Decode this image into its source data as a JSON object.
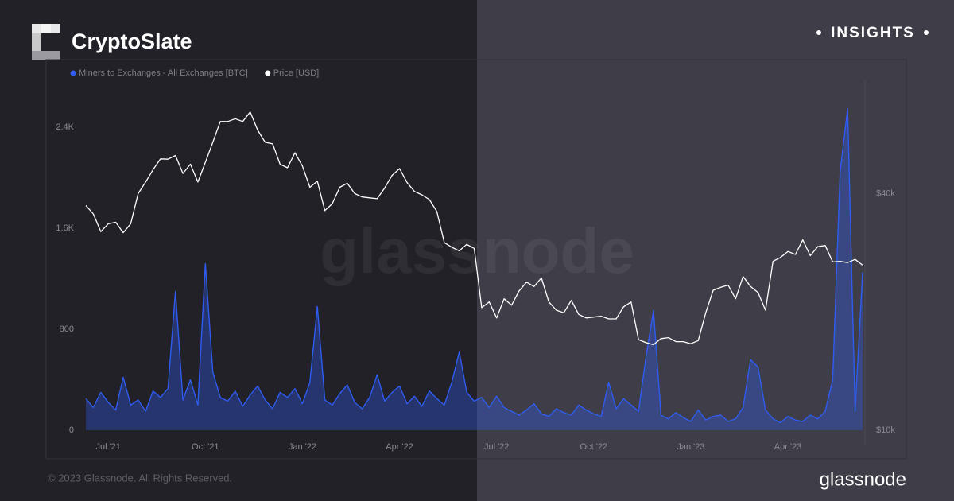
{
  "brand": "CryptoSlate",
  "badge": "INSIGHTS",
  "chart_data": {
    "type": "line",
    "watermark": "glassnode",
    "categories": [
      null,
      null,
      null,
      "Jul '21",
      null,
      null,
      null,
      null,
      null,
      null,
      null,
      null,
      null,
      null,
      null,
      null,
      "Oct '21",
      null,
      null,
      null,
      null,
      null,
      null,
      null,
      null,
      null,
      null,
      null,
      null,
      "Jan '22",
      null,
      null,
      null,
      null,
      null,
      null,
      null,
      null,
      null,
      null,
      null,
      null,
      "Apr '22",
      null,
      null,
      null,
      null,
      null,
      null,
      null,
      null,
      null,
      null,
      null,
      null,
      "Jul '22",
      null,
      null,
      null,
      null,
      null,
      null,
      null,
      null,
      null,
      null,
      null,
      null,
      "Oct '22",
      null,
      null,
      null,
      null,
      null,
      null,
      null,
      null,
      null,
      null,
      null,
      null,
      "Jan '23",
      null,
      null,
      null,
      null,
      null,
      null,
      null,
      null,
      null,
      null,
      null,
      null,
      "Apr '23",
      null,
      null,
      null,
      null,
      null,
      null,
      null,
      null,
      null,
      null
    ],
    "series": [
      {
        "name": "Miners to Exchanges - All Exchanges [BTC]",
        "color": "#2f5cf0",
        "fill": true,
        "values": [
          250,
          180,
          300,
          220,
          160,
          420,
          200,
          240,
          150,
          310,
          260,
          330,
          1100,
          240,
          400,
          200,
          1320,
          460,
          260,
          230,
          310,
          190,
          280,
          350,
          240,
          170,
          300,
          260,
          330,
          210,
          380,
          980,
          240,
          200,
          290,
          360,
          220,
          170,
          260,
          440,
          230,
          300,
          350,
          210,
          270,
          190,
          310,
          250,
          200,
          380,
          620,
          300,
          230,
          260,
          180,
          270,
          180,
          150,
          120,
          160,
          210,
          130,
          110,
          170,
          140,
          120,
          200,
          160,
          130,
          110,
          380,
          170,
          250,
          200,
          150,
          580,
          950,
          120,
          90,
          140,
          100,
          70,
          160,
          80,
          110,
          120,
          70,
          90,
          180,
          560,
          500,
          160,
          90,
          60,
          110,
          80,
          70,
          120,
          90,
          150,
          400,
          2050,
          2550,
          150,
          1250
        ]
      },
      {
        "name": "Price [USD]",
        "color": "#ffffff",
        "axis": "y2",
        "values": [
          37300,
          35500,
          32000,
          33500,
          33800,
          31800,
          33500,
          40000,
          42800,
          46000,
          49000,
          48900,
          50000,
          45000,
          47500,
          42800,
          48000,
          54000,
          61000,
          61000,
          62000,
          61000,
          64500,
          58000,
          54000,
          53500,
          47500,
          46500,
          50800,
          47000,
          41500,
          43000,
          36200,
          37700,
          41500,
          42500,
          40000,
          39200,
          39000,
          38800,
          41300,
          44500,
          46300,
          42700,
          40500,
          39700,
          38600,
          36000,
          30000,
          29200,
          28600,
          29700,
          29000,
          20500,
          21200,
          19300,
          21600,
          20800,
          22600,
          23800,
          23200,
          24400,
          21200,
          20200,
          19900,
          21400,
          19700,
          19300,
          19400,
          19500,
          19200,
          19200,
          20600,
          21200,
          17000,
          16700,
          16500,
          17100,
          17200,
          16800,
          16800,
          16600,
          16900,
          19900,
          22700,
          23100,
          23400,
          21600,
          24600,
          23200,
          22400,
          20200,
          26900,
          27500,
          28500,
          28000,
          30500,
          27800,
          29300,
          29500,
          26800,
          26900,
          26700,
          27200,
          26300
        ]
      }
    ],
    "ylim": [
      0,
      2780
    ],
    "yticks": [
      0,
      800,
      {
        "value": 1600,
        "label": "1.6K"
      },
      {
        "value": 2400,
        "label": "2.4K"
      }
    ],
    "y2lim": [
      10000,
      78000
    ],
    "y2ticks": [
      {
        "value": 10000,
        "label": "$10k"
      },
      {
        "value": 40000,
        "label": "$40k"
      }
    ],
    "y2log": true,
    "legend": "top-left"
  },
  "footer": {
    "copyright": "© 2023 Glassnode. All Rights Reserved.",
    "logo": "glassnode"
  }
}
